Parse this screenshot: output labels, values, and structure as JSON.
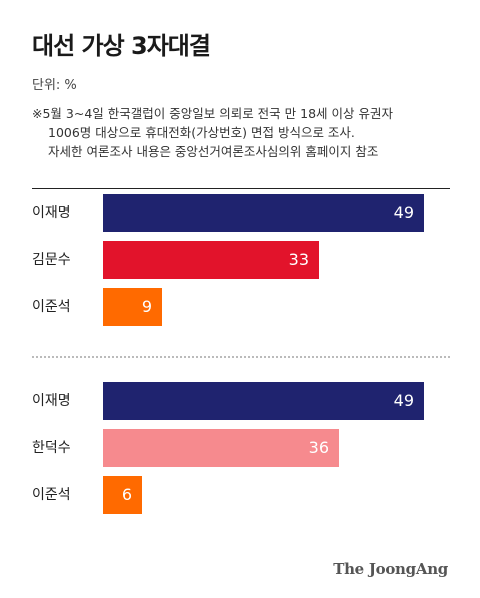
{
  "title": "대선 가상 3자대결",
  "unit_label": "단위: %",
  "note_lines": [
    "※5월 3~4일 한국갤럽이 중앙일보 의뢰로 전국 만 18세 이상 유권자",
    "1006명 대상으로 휴대전화(가상번호) 면접 방식으로 조사.",
    "자세한 여론조사 내용은 중앙선거여론조사심의위 홈페이지 참조"
  ],
  "logo_text": "The JoongAng",
  "colors": {
    "navy": "#1f236f",
    "red": "#e2132b",
    "orange": "#ff6a00",
    "pink": "#f68a8e"
  },
  "chart_data": [
    {
      "type": "bar",
      "orientation": "horizontal",
      "categories": [
        "이재명",
        "김문수",
        "이준석"
      ],
      "values": [
        49,
        33,
        9
      ],
      "bar_colors": [
        "#1f236f",
        "#e2132b",
        "#ff6a00"
      ],
      "xlim": [
        0,
        50
      ]
    },
    {
      "type": "bar",
      "orientation": "horizontal",
      "categories": [
        "이재명",
        "한덕수",
        "이준석"
      ],
      "values": [
        49,
        36,
        6
      ],
      "bar_colors": [
        "#1f236f",
        "#f68a8e",
        "#ff6a00"
      ],
      "xlim": [
        0,
        50
      ]
    }
  ]
}
